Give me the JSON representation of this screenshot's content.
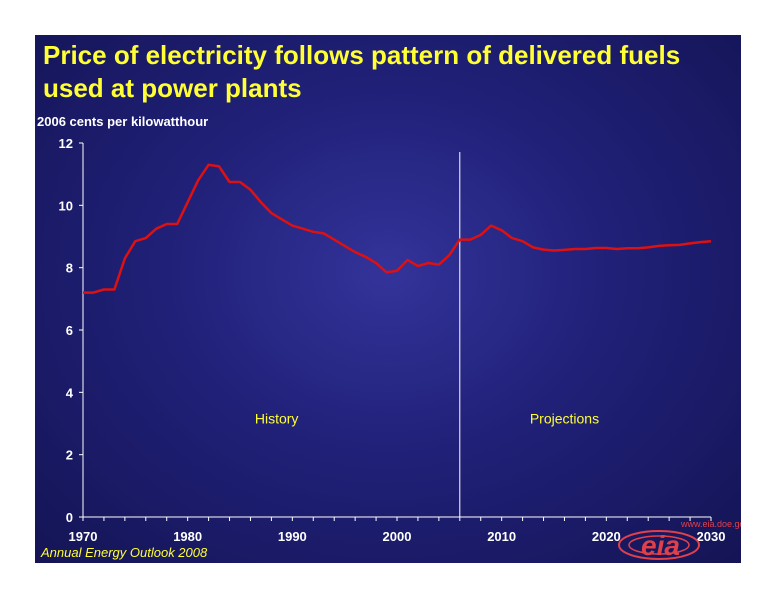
{
  "chart_data": {
    "type": "line",
    "title": "Price of electricity follows pattern of delivered fuels used at power plants",
    "ylabel": "2006 cents per kilowatthour",
    "xlabel": "",
    "xlim": [
      1970,
      2030
    ],
    "ylim": [
      0,
      12
    ],
    "x_ticks": [
      "1970",
      "1980",
      "1990",
      "2000",
      "2010",
      "2020",
      "2030"
    ],
    "y_ticks": [
      "0",
      "2",
      "4",
      "6",
      "8",
      "10",
      "12"
    ],
    "divider_year": 2006,
    "annotations": {
      "history": "History",
      "projections": "Projections"
    },
    "grid": false,
    "legend": "none",
    "series": [
      {
        "color": "#dd1111",
        "x": [
          1970,
          1971,
          1972,
          1973,
          1974,
          1975,
          1976,
          1977,
          1978,
          1979,
          1980,
          1981,
          1982,
          1983,
          1984,
          1985,
          1986,
          1987,
          1988,
          1989,
          1990,
          1991,
          1992,
          1993,
          1994,
          1995,
          1996,
          1997,
          1998,
          1999,
          2000,
          2001,
          2002,
          2003,
          2004,
          2005,
          2006,
          2007,
          2008,
          2009,
          2010,
          2011,
          2012,
          2013,
          2014,
          2015,
          2016,
          2017,
          2018,
          2019,
          2020,
          2021,
          2022,
          2023,
          2024,
          2025,
          2026,
          2027,
          2028,
          2029,
          2030
        ],
        "values": [
          7.2,
          7.2,
          7.3,
          7.3,
          8.3,
          8.85,
          8.95,
          9.25,
          9.4,
          9.4,
          10.1,
          10.8,
          11.3,
          11.25,
          10.75,
          10.75,
          10.5,
          10.1,
          9.75,
          9.55,
          9.35,
          9.25,
          9.15,
          9.1,
          8.9,
          8.7,
          8.5,
          8.35,
          8.15,
          7.85,
          7.9,
          8.25,
          8.05,
          8.15,
          8.1,
          8.4,
          8.9,
          8.9,
          9.05,
          9.35,
          9.2,
          8.95,
          8.85,
          8.65,
          8.58,
          8.55,
          8.57,
          8.6,
          8.6,
          8.63,
          8.63,
          8.6,
          8.62,
          8.62,
          8.65,
          8.7,
          8.72,
          8.73,
          8.78,
          8.82,
          8.85
        ]
      }
    ]
  },
  "footer": {
    "source": "Annual Energy Outlook 2008"
  },
  "logo": {
    "text": "eia",
    "url_text": "www.eia.doe.gov",
    "color": "#e0404a"
  }
}
